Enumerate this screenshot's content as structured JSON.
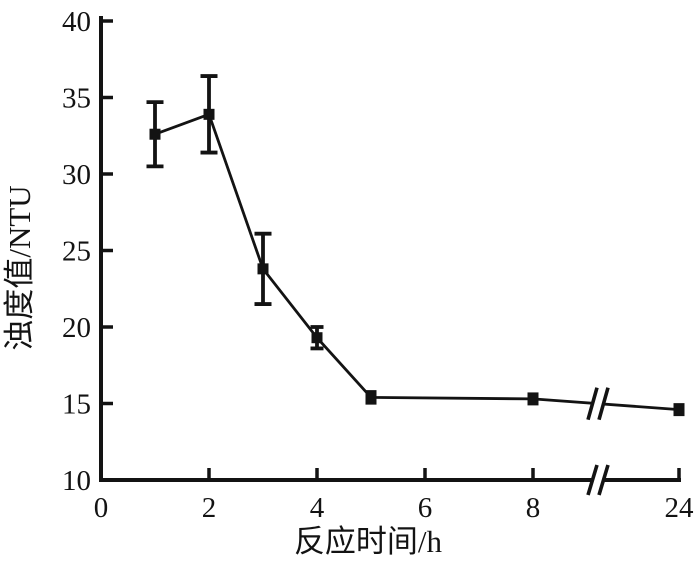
{
  "chart_data": {
    "type": "line",
    "title": "",
    "xlabel": "反应时间/h",
    "ylabel": "浊度值/NTU",
    "x_ticks": [
      0,
      2,
      4,
      6,
      8,
      24
    ],
    "y_ticks": [
      10,
      15,
      20,
      25,
      30,
      35,
      40
    ],
    "xlim_note": "axis break between 8 and 24",
    "ylim": [
      10,
      40
    ],
    "grid": false,
    "legend": "none",
    "marker": "filled-square",
    "line_color": "#131313",
    "background_color": "#ffffff",
    "axis_break": {
      "between": [
        8,
        24
      ],
      "symbol": "double-slash"
    },
    "series": [
      {
        "name": "turbidity",
        "x": [
          1,
          2,
          3,
          4,
          5,
          8,
          24
        ],
        "y": [
          32.6,
          33.9,
          23.8,
          19.3,
          15.4,
          15.3,
          14.6
        ],
        "y_err": [
          2.1,
          2.5,
          2.3,
          0.7,
          0.35,
          0.3,
          0.3
        ]
      }
    ]
  }
}
